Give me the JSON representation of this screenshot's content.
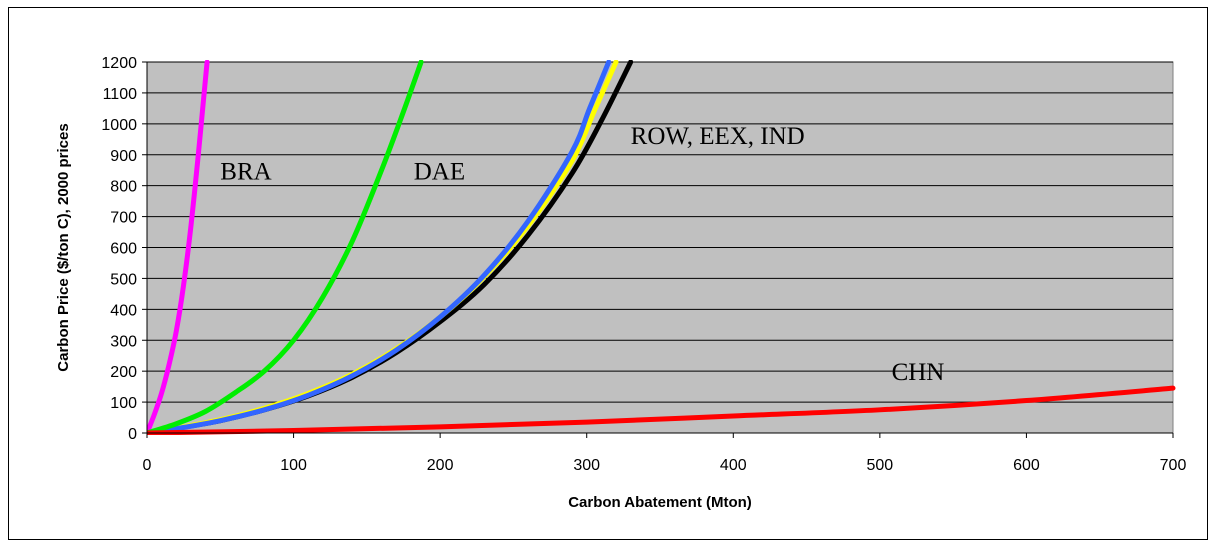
{
  "chart_data": {
    "type": "line",
    "title": "",
    "xlabel": "Carbon Abatement (Mton)",
    "ylabel": "Carbon Price ($/ton C), 2000 prices",
    "xlim": [
      0,
      700
    ],
    "ylim": [
      0,
      1200
    ],
    "x_ticks": [
      0,
      100,
      200,
      300,
      400,
      500,
      600,
      700
    ],
    "y_ticks": [
      0,
      100,
      200,
      300,
      400,
      500,
      600,
      700,
      800,
      900,
      1000,
      1100,
      1200
    ],
    "grid": "horizontal",
    "background": "#C0C0C0",
    "annotations": [
      {
        "text": "BRA",
        "x": 50,
        "y": 820
      },
      {
        "text": "DAE",
        "x": 182,
        "y": 820
      },
      {
        "text": "ROW, EEX, IND",
        "x": 330,
        "y": 935
      },
      {
        "text": "CHN",
        "x": 508,
        "y": 172
      }
    ],
    "series": [
      {
        "color": "#000000",
        "x": [
          0,
          20,
          50,
          80,
          110,
          140,
          170,
          200,
          230,
          260,
          290,
          310,
          330
        ],
        "y": [
          0,
          15,
          40,
          75,
          120,
          180,
          260,
          360,
          480,
          640,
          840,
          1010,
          1200
        ]
      },
      {
        "color": "#FFFF00",
        "x": [
          0,
          20,
          50,
          80,
          110,
          140,
          170,
          200,
          230,
          260,
          290,
          305,
          320
        ],
        "y": [
          0,
          16,
          43,
          80,
          128,
          190,
          272,
          375,
          505,
          670,
          880,
          1040,
          1200
        ]
      },
      {
        "color": "#3366FF",
        "x": [
          0,
          20,
          50,
          80,
          110,
          140,
          170,
          200,
          230,
          260,
          290,
          302,
          315
        ],
        "y": [
          0,
          14,
          40,
          75,
          122,
          185,
          268,
          375,
          510,
          685,
          910,
          1050,
          1200
        ]
      },
      {
        "color": "#FF00FF",
        "x": [
          0,
          5,
          10,
          15,
          20,
          25,
          30,
          35,
          38,
          41
        ],
        "y": [
          0,
          60,
          130,
          220,
          330,
          480,
          670,
          900,
          1050,
          1200
        ]
      },
      {
        "color": "#00EE00",
        "x": [
          0,
          20,
          40,
          60,
          80,
          100,
          120,
          140,
          160,
          175,
          187
        ],
        "y": [
          0,
          30,
          70,
          130,
          200,
          300,
          440,
          620,
          850,
          1040,
          1200
        ]
      },
      {
        "color": "#FF0000",
        "x": [
          0,
          100,
          200,
          300,
          400,
          500,
          600,
          700
        ],
        "y": [
          0,
          8,
          20,
          35,
          55,
          75,
          105,
          145
        ]
      }
    ]
  }
}
